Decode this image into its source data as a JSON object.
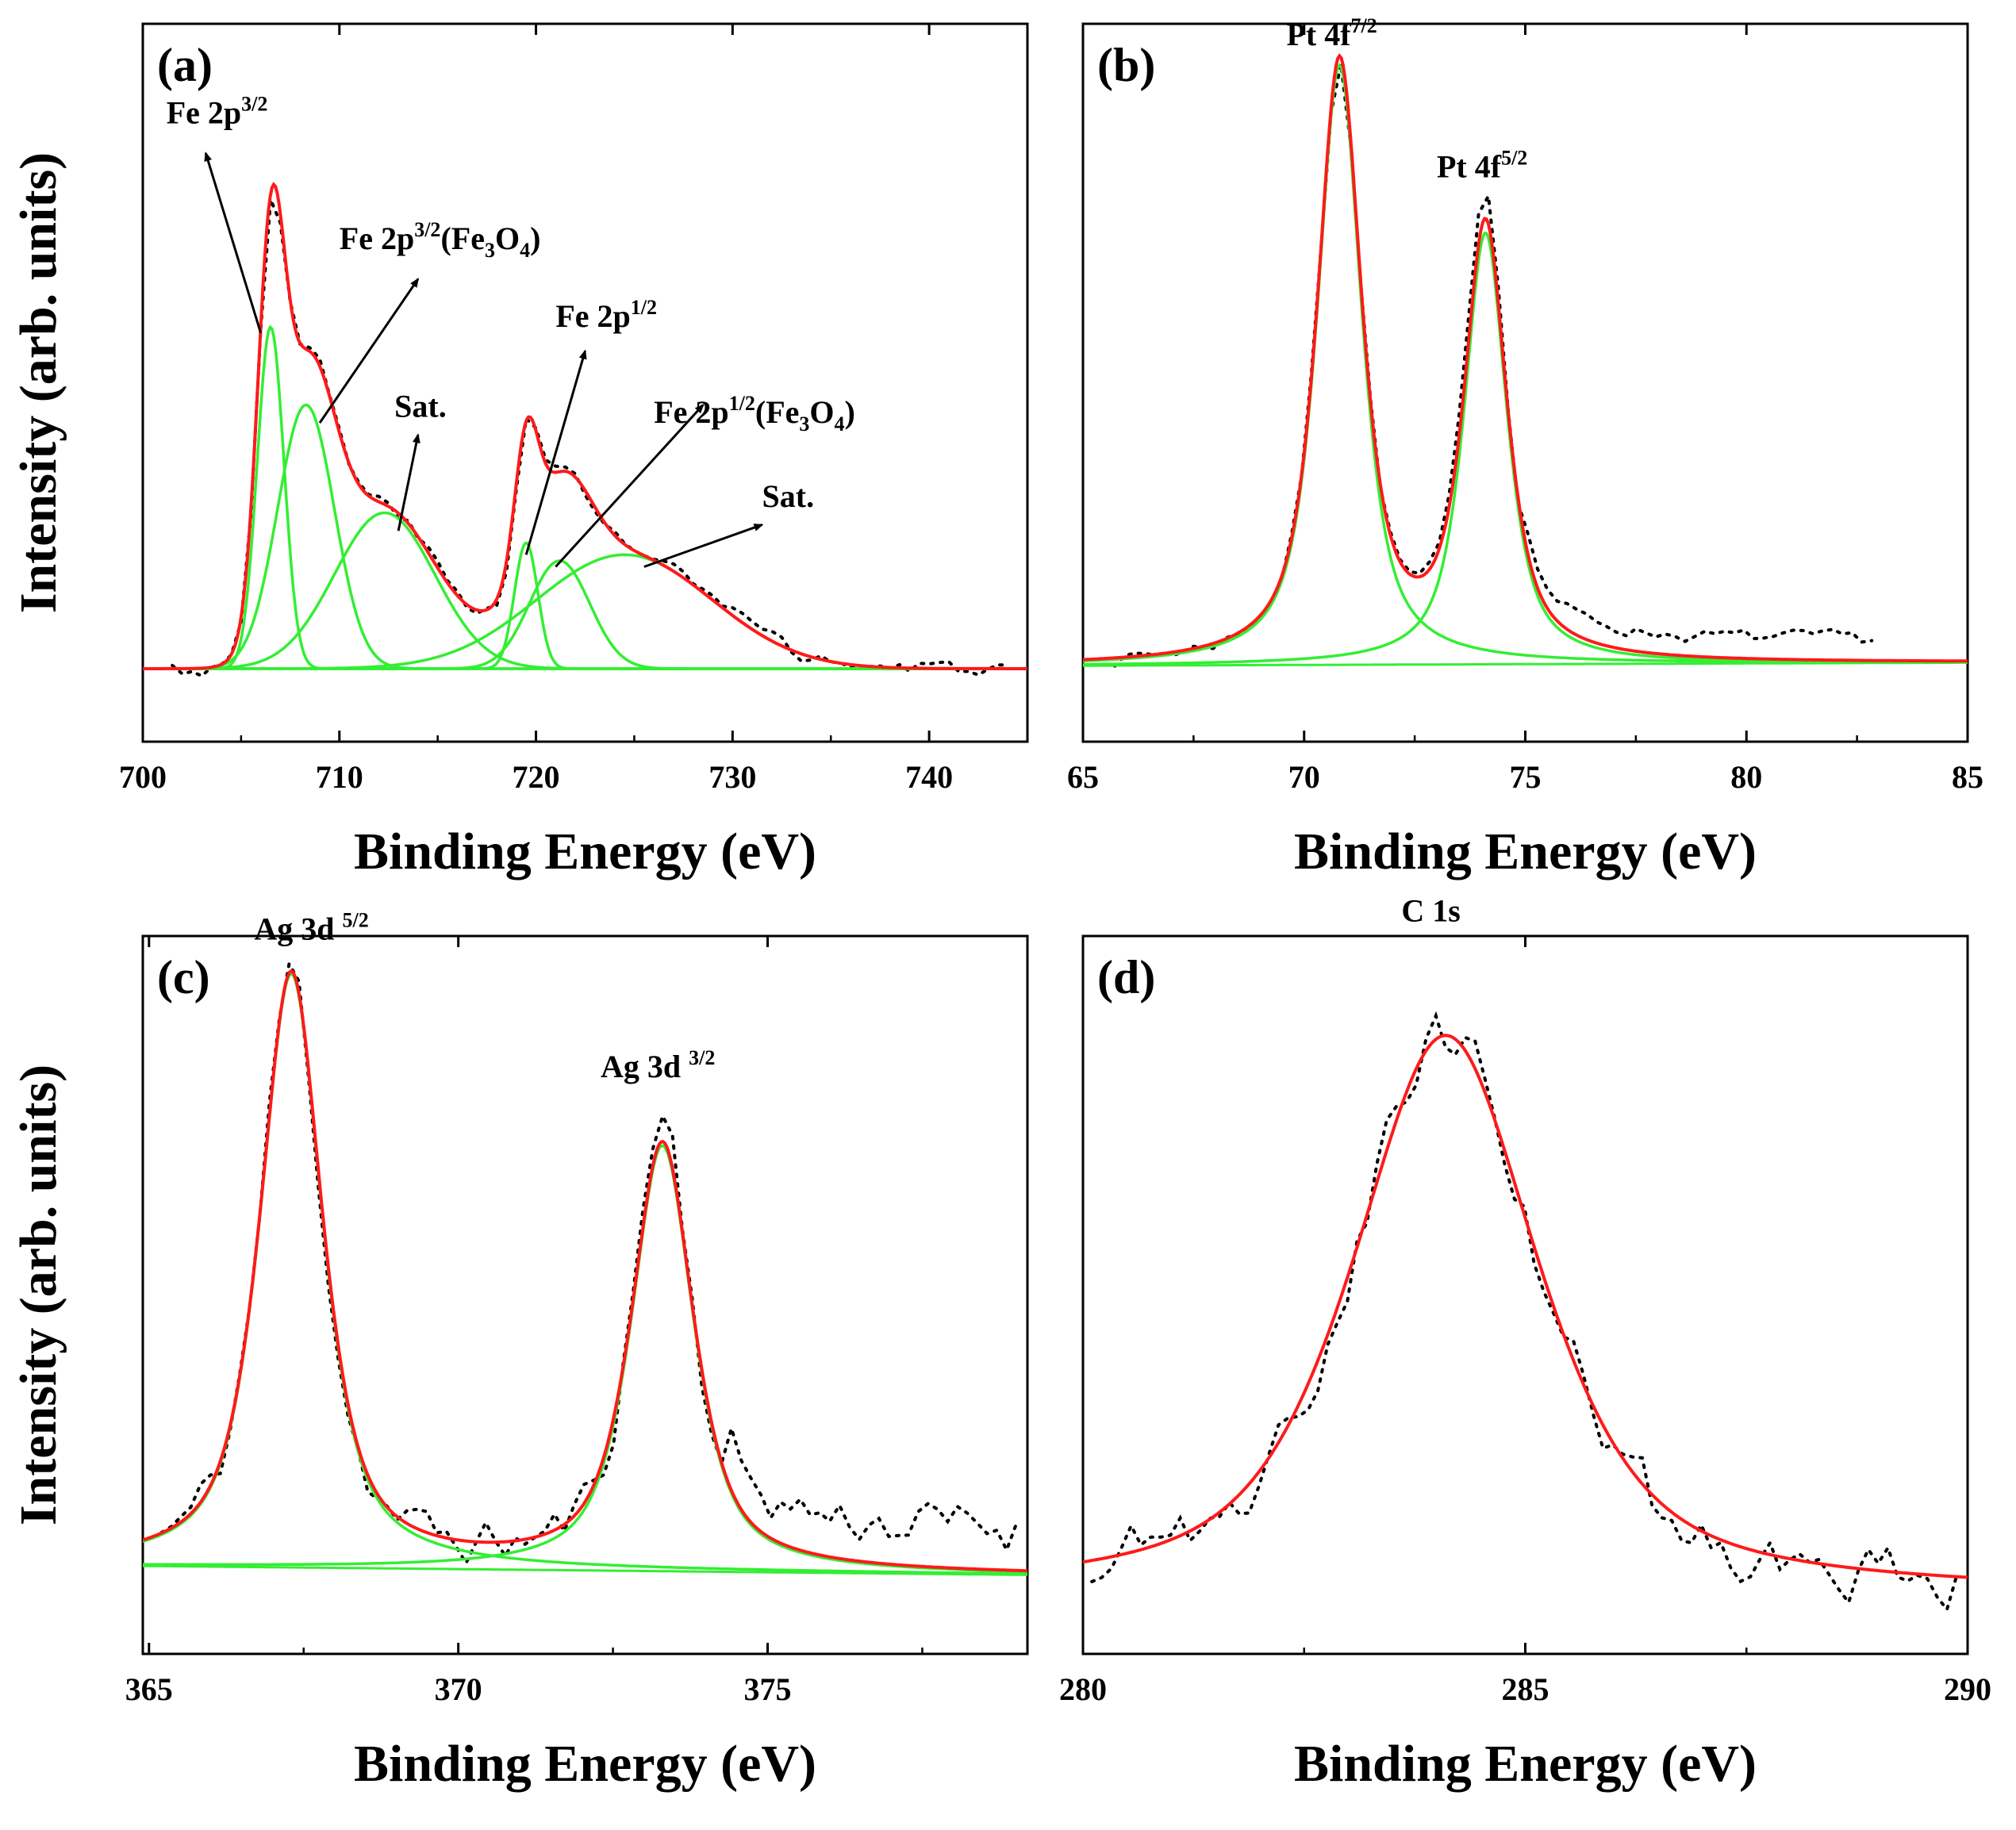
{
  "figure": {
    "colors": {
      "fit": "#ff1a1a",
      "component": "#33ee33",
      "raw": "#000000",
      "arrow": "#000000"
    }
  },
  "chart_data": [
    {
      "id": "a",
      "type": "line",
      "panel_label": "(a)",
      "xlabel": "Binding Energy (eV)",
      "ylabel": "Intensity (arb. units)",
      "xlim": [
        700,
        745
      ],
      "ylim": [
        0,
        1.0
      ],
      "xticks": [
        700,
        710,
        720,
        730,
        740
      ],
      "xtick_labels": [
        "700",
        "710",
        "720",
        "730",
        "740"
      ],
      "background": {
        "type": "constant",
        "level": 0.02
      },
      "components": [
        {
          "name": "Fe 2p3/2",
          "center": 706.5,
          "amplitude": 0.57,
          "fwhm": 1.6,
          "eta": 0.0
        },
        {
          "name": "Fe 2p3/2 (Fe3O4)",
          "center": 708.3,
          "amplitude": 0.44,
          "fwhm": 3.4,
          "eta": 0.0
        },
        {
          "name": "Sat.",
          "center": 712.3,
          "amplitude": 0.26,
          "fwhm": 6.0,
          "eta": 0.0
        },
        {
          "name": "Fe 2p1/2",
          "center": 719.5,
          "amplitude": 0.21,
          "fwhm": 1.4,
          "eta": 0.0
        },
        {
          "name": "Fe 2p1/2 (Fe3O4)",
          "center": 721.2,
          "amplitude": 0.18,
          "fwhm": 3.6,
          "eta": 0.0
        },
        {
          "name": "Sat.",
          "center": 724.5,
          "amplitude": 0.19,
          "fwhm": 10.5,
          "eta": 0.0
        }
      ],
      "noise_seed": 3,
      "noise_amp": 0.012,
      "raw_x_range": [
        701.5,
        744
      ],
      "annotations": [
        {
          "text": "Fe 2p",
          "sup": "3/2",
          "sub": "",
          "tail": "",
          "x": 701.2,
          "y": 0.93
        },
        {
          "text": "Fe 2p",
          "sup": "3/2",
          "sub": "",
          "tail": "(Fe",
          "sub2": "3",
          "tail2": "O",
          "sub3": "4",
          "tail3": ")",
          "x": 710.0,
          "y": 0.72
        },
        {
          "text": "Sat.",
          "sup": "",
          "sub": "",
          "tail": "",
          "x": 712.8,
          "y": 0.44
        },
        {
          "text": "Fe 2p",
          "sup": "1/2",
          "sub": "",
          "tail": "",
          "x": 721.0,
          "y": 0.59
        },
        {
          "text": "Fe 2p",
          "sup": "1/2",
          "sub": "",
          "tail": "(Fe",
          "sub2": "3",
          "tail2": "O",
          "sub3": "4",
          "tail3": ")",
          "x": 726.0,
          "y": 0.43
        },
        {
          "text": "Sat.",
          "sup": "",
          "sub": "",
          "tail": "",
          "x": 731.5,
          "y": 0.29
        }
      ],
      "arrows": [
        {
          "from": [
            706.0,
            0.58
          ],
          "to": [
            703.2,
            0.88
          ]
        },
        {
          "from": [
            709.0,
            0.43
          ],
          "to": [
            714.0,
            0.67
          ]
        },
        {
          "from": [
            713.0,
            0.25
          ],
          "to": [
            714.0,
            0.41
          ]
        },
        {
          "from": [
            719.5,
            0.21
          ],
          "to": [
            722.5,
            0.55
          ]
        },
        {
          "from": [
            721.0,
            0.19
          ],
          "to": [
            728.5,
            0.46
          ]
        },
        {
          "from": [
            725.5,
            0.19
          ],
          "to": [
            731.5,
            0.26
          ]
        }
      ]
    },
    {
      "id": "b",
      "type": "line",
      "panel_label": "(b)",
      "xlabel": "Binding Energy (eV)",
      "ylabel": "",
      "xlim": [
        65,
        85
      ],
      "ylim": [
        0,
        1.0
      ],
      "xticks": [
        65,
        70,
        75,
        80,
        85
      ],
      "xtick_labels": [
        "65",
        "70",
        "75",
        "80",
        "85"
      ],
      "background": {
        "type": "linear",
        "start": 0.025,
        "end": 0.03
      },
      "components": [
        {
          "name": "Pt 4f7/2",
          "center": 70.8,
          "amplitude": 1.0,
          "fwhm": 1.2,
          "eta": 0.75
        },
        {
          "name": "Pt 4f5/2",
          "center": 74.1,
          "amplitude": 0.72,
          "fwhm": 1.15,
          "eta": 0.75
        }
      ],
      "noise_seed": 7,
      "noise_amp": 0.01,
      "raw_x_range": [
        65.5,
        83
      ],
      "raw_extra": {
        "center": 74.0,
        "amp": 0.06,
        "width": 0.5,
        "tail_amp": 0.035
      },
      "annotations": [
        {
          "text": "Pt 4f",
          "sup": "7/2",
          "sub": "",
          "tail": "",
          "x": 69.6,
          "y": 1.06
        },
        {
          "text": "Pt 4f",
          "sup": "5/2",
          "sub": "",
          "tail": "",
          "x": 73.0,
          "y": 0.84
        }
      ],
      "arrows": []
    },
    {
      "id": "c",
      "type": "line",
      "panel_label": "(c)",
      "xlabel": "Binding Energy (eV)",
      "ylabel": "Intensity (arb. units)",
      "xlim": [
        364.9,
        379.2
      ],
      "ylim": [
        0,
        1.0
      ],
      "xticks": [
        365,
        370,
        375
      ],
      "xtick_labels": [
        "365",
        "370",
        "375"
      ],
      "background": {
        "type": "linear",
        "start": 0.045,
        "end": 0.03
      },
      "components": [
        {
          "name": "Ag 3d5/2",
          "center": 367.3,
          "amplitude": 0.99,
          "fwhm": 1.2,
          "eta": 0.7
        },
        {
          "name": "Ag 3d3/2",
          "center": 373.3,
          "amplitude": 0.71,
          "fwhm": 1.2,
          "eta": 0.7
        }
      ],
      "noise_seed": 11,
      "noise_amp": 0.035,
      "raw_x_range": [
        365.2,
        379.1
      ],
      "raw_extra": {
        "center": 373.3,
        "amp": 0.05,
        "width": 0.4,
        "tail_amp": 0.07
      },
      "annotations": [
        {
          "text": "Ag 3d ",
          "sup": "5/2",
          "sub": "",
          "tail": "",
          "x": 366.7,
          "y": 1.09
        },
        {
          "text": "Ag 3d ",
          "sup": "3/2",
          "sub": "",
          "tail": "",
          "x": 372.3,
          "y": 0.86
        }
      ],
      "arrows": []
    },
    {
      "id": "d",
      "type": "line",
      "panel_label": "(d)",
      "xlabel": "Binding Energy (eV)",
      "ylabel": "",
      "xlim": [
        280,
        290
      ],
      "ylim": [
        0,
        1.0
      ],
      "xticks": [
        280,
        285,
        290
      ],
      "xtick_labels": [
        "280",
        "285",
        "290"
      ],
      "background": {
        "type": "constant",
        "level": 0.0
      },
      "components": [
        {
          "name": "C 1s",
          "center": 284.1,
          "amplitude": 0.93,
          "fwhm": 2.5,
          "eta": 0.65
        }
      ],
      "noise_seed": 19,
      "noise_amp": 0.04,
      "raw_x_range": [
        280.1,
        289.9
      ],
      "annotations": [
        {
          "text": "C 1s",
          "sup": "",
          "sub": "",
          "tail": "",
          "x": 283.6,
          "y": 1.12
        }
      ],
      "arrows": []
    }
  ]
}
